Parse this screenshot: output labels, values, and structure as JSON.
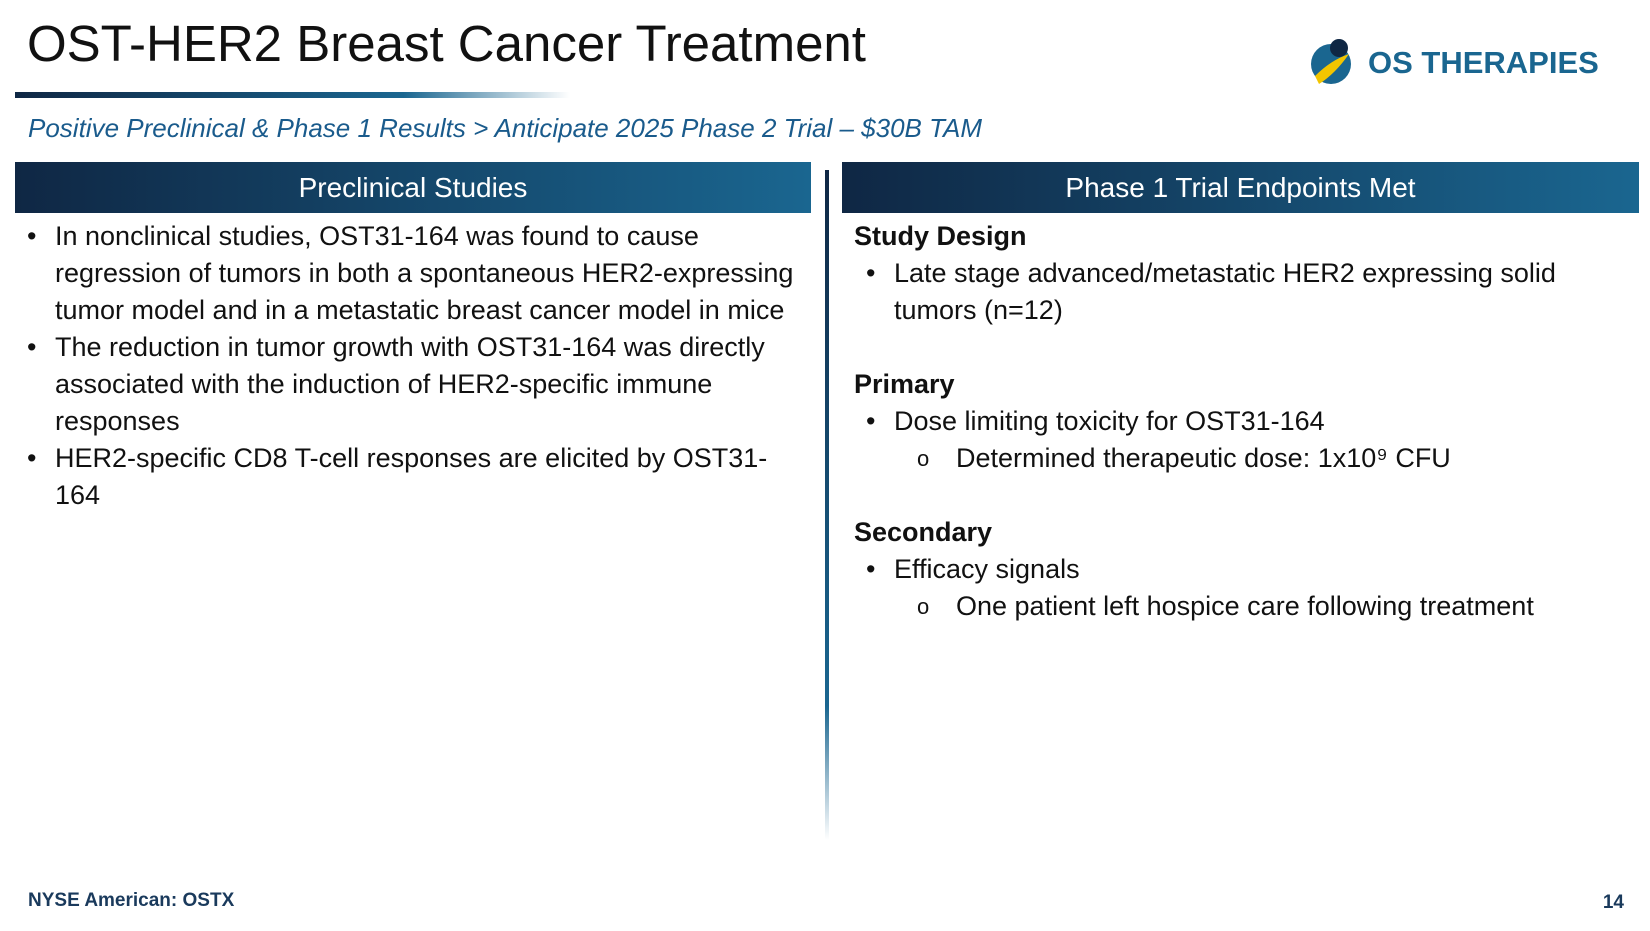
{
  "header": {
    "title": "OST-HER2 Breast Cancer Treatment",
    "subtitle": "Positive Preclinical & Phase 1 Results > Anticipate 2025 Phase 2 Trial – $30B TAM",
    "logo": "OS THERAPIES"
  },
  "left": {
    "heading": "Preclinical Studies",
    "bullets": [
      "In nonclinical studies, OST31-164 was found to cause regression of tumors in both a spontaneous HER2-expressing tumor model and in a metastatic breast cancer model in mice",
      "The reduction in tumor growth with OST31-164 was directly associated with the induction of HER2-specific immune responses",
      "HER2-specific CD8 T-cell responses are elicited by OST31-164"
    ]
  },
  "right": {
    "heading": "Phase 1 Trial Endpoints Met",
    "sections": [
      {
        "heading": "Study Design",
        "bullets": [
          {
            "text": "Late stage advanced/metastatic HER2 expressing solid tumors (n=12)",
            "sub": []
          }
        ]
      },
      {
        "heading": "Primary",
        "bullets": [
          {
            "text": "Dose limiting toxicity for OST31-164",
            "sub": [
              "Determined therapeutic dose: 1x10⁹ CFU"
            ]
          }
        ]
      },
      {
        "heading": "Secondary",
        "bullets": [
          {
            "text": "Efficacy signals",
            "sub": [
              "One patient left hospice care following treatment"
            ]
          }
        ]
      }
    ]
  },
  "footer": {
    "ticker": "NYSE American: OSTX",
    "page": "14"
  }
}
